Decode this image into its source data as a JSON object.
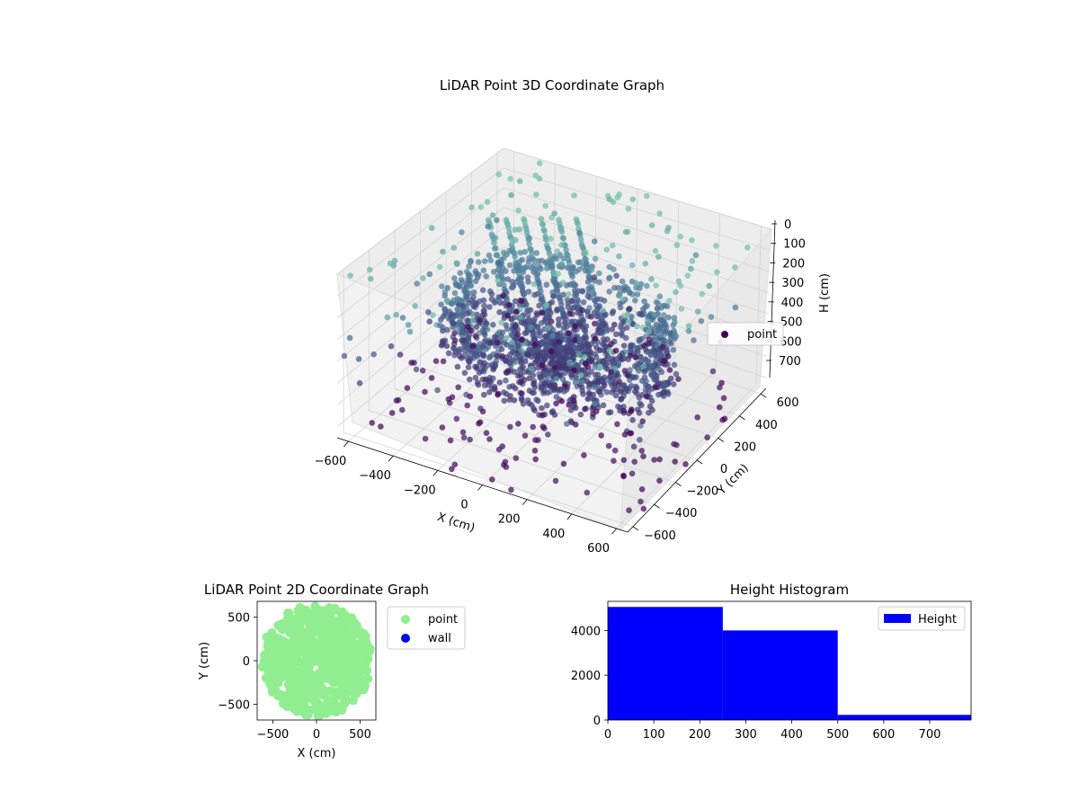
{
  "chart_data": [
    {
      "type": "scatter",
      "projection": "3d",
      "title": "LiDAR Point 3D Coordinate Graph",
      "xlabel": "X (cm)",
      "ylabel": "Y (cm)",
      "zlabel": "H (cm)",
      "x_ticks": [
        "−600",
        "−400",
        "−200",
        "0",
        "200",
        "400",
        "600"
      ],
      "y_ticks": [
        "600",
        "400",
        "200",
        "0",
        "−200",
        "−400",
        "−600"
      ],
      "z_ticks": [
        "0",
        "100",
        "200",
        "300",
        "400",
        "500",
        "600",
        "700"
      ],
      "xlim": [
        -650,
        650
      ],
      "ylim": [
        -650,
        650
      ],
      "zlim": [
        0,
        750
      ],
      "z_inverted": true,
      "colormap": "viridis (by height)",
      "legend": [
        {
          "label": "point",
          "color": "#440154"
        }
      ],
      "legend_position": "right",
      "grid": true
    },
    {
      "type": "scatter",
      "title": "LiDAR Point 2D Coordinate Graph",
      "xlabel": "X (cm)",
      "ylabel": "Y (cm)",
      "x_ticks": [
        "−500",
        "0",
        "500"
      ],
      "y_ticks": [
        "500",
        "0",
        "−500"
      ],
      "xlim": [
        -680,
        680
      ],
      "ylim": [
        -680,
        680
      ],
      "series": [
        {
          "name": "point",
          "color": "#90ee90"
        },
        {
          "name": "wall",
          "color": "#0000ff"
        }
      ],
      "legend_position": "outside right"
    },
    {
      "type": "bar",
      "subtype": "histogram",
      "title": "Height Histogram",
      "series": [
        {
          "name": "Height",
          "color": "#0000ff"
        }
      ],
      "bins": [
        {
          "from": 0,
          "to": 250,
          "count": 5050
        },
        {
          "from": 250,
          "to": 500,
          "count": 4000
        },
        {
          "from": 500,
          "to": 790,
          "count": 230
        }
      ],
      "x_ticks": [
        "0",
        "100",
        "200",
        "300",
        "400",
        "500",
        "600",
        "700"
      ],
      "y_ticks": [
        "0",
        "2000",
        "4000"
      ],
      "xlim": [
        0,
        790
      ],
      "ylim": [
        0,
        5300
      ],
      "legend_position": "top-right"
    }
  ]
}
